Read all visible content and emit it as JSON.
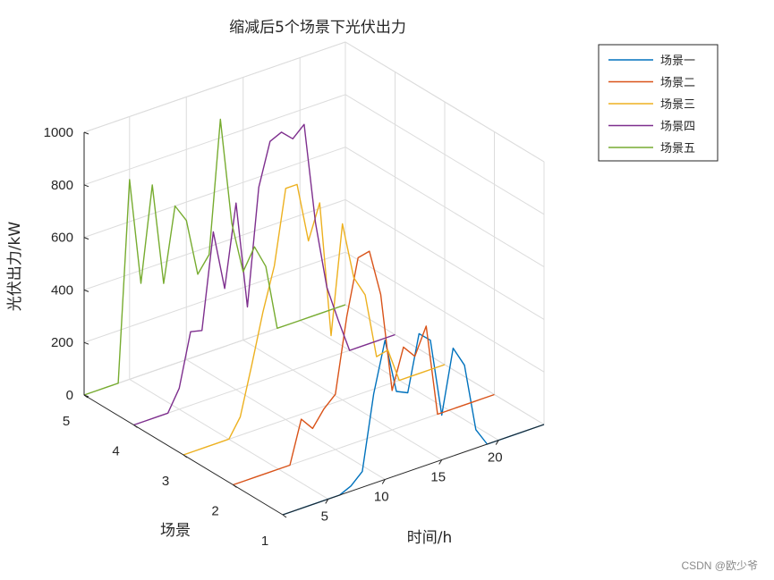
{
  "watermark": "CSDN @欧少爷",
  "chart_data": {
    "type": "line",
    "title": "缩减后5个场景下光伏出力",
    "xlabel": "时间/h",
    "ylabel": "场景",
    "zlabel": "光伏出力/kW",
    "xlim": [
      1,
      24
    ],
    "ylim": [
      1,
      5
    ],
    "zlim": [
      0,
      1000
    ],
    "x_ticks": [
      5,
      10,
      15,
      20
    ],
    "y_ticks": [
      1,
      2,
      3,
      4,
      5
    ],
    "z_ticks": [
      0,
      200,
      400,
      600,
      800,
      1000
    ],
    "grid": true,
    "legend_position": "top-right",
    "x": [
      1,
      2,
      3,
      4,
      5,
      6,
      7,
      8,
      9,
      10,
      11,
      12,
      13,
      14,
      15,
      16,
      17,
      18,
      19,
      20,
      21,
      22,
      23,
      24
    ],
    "series": [
      {
        "name": "场景一",
        "y": 1,
        "color": "#0072BD",
        "values": [
          0,
          0,
          0,
          0,
          0,
          0,
          20,
          60,
          340,
          530,
          320,
          300,
          510,
          470,
          170,
          410,
          330,
          70,
          0,
          0,
          0,
          0,
          0,
          0
        ]
      },
      {
        "name": "场景二",
        "y": 2,
        "color": "#D95319",
        "values": [
          0,
          0,
          0,
          0,
          0,
          0,
          160,
          110,
          170,
          210,
          490,
          700,
          710,
          530,
          150,
          300,
          250,
          350,
          0,
          0,
          0,
          0,
          0,
          0
        ]
      },
      {
        "name": "场景三",
        "y": 3,
        "color": "#EDB120",
        "values": [
          0,
          0,
          0,
          0,
          0,
          70,
          250,
          440,
          600,
          880,
          880,
          650,
          780,
          260,
          670,
          450,
          370,
          120,
          130,
          0,
          0,
          0,
          0,
          0
        ]
      },
      {
        "name": "场景四",
        "y": 4,
        "color": "#7E2F8E",
        "values": [
          0,
          0,
          0,
          0,
          80,
          280,
          270,
          630,
          400,
          710,
          300,
          740,
          900,
          920,
          880,
          920,
          530,
          270,
          130,
          0,
          0,
          0,
          0,
          0
        ]
      },
      {
        "name": "场景五",
        "y": 5,
        "color": "#77AC30",
        "values": [
          0,
          0,
          0,
          0,
          760,
          350,
          710,
          320,
          600,
          530,
          310,
          370,
          870,
          460,
          260,
          340,
          250,
          0,
          0,
          0,
          0,
          0,
          0,
          0
        ]
      }
    ]
  }
}
